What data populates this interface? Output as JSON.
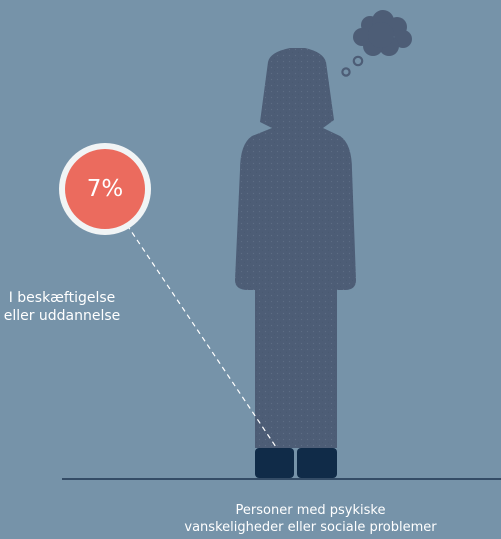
{
  "colors": {
    "background": "#7693a9",
    "figure": "#4d5d76",
    "shoes": "#102b48",
    "badge_fill": "#eb6b5e",
    "badge_ring": "#f1f4f5",
    "ground_line": "#1e3550",
    "text": "#ffffff"
  },
  "badge": {
    "value": "7%",
    "value_fraction": 0.07
  },
  "stat_label": {
    "line1": "I beskæftigelse",
    "line2": "eller uddannelse"
  },
  "caption": {
    "line1": "Personer med psykiske",
    "line2": "vanskeligheder eller sociale problemer"
  },
  "icons": [
    "person-figure-icon",
    "thought-cloud-icon"
  ]
}
